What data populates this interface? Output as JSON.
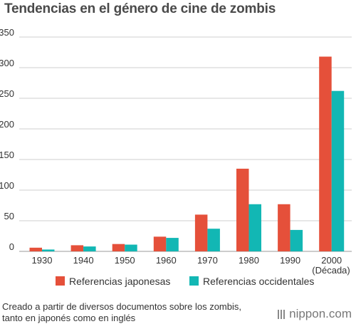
{
  "chart_data": {
    "type": "bar",
    "title": "Tendencias en el género de cine de zombis",
    "categories": [
      "1930",
      "1940",
      "1950",
      "1960",
      "1970",
      "1980",
      "1990",
      "2000"
    ],
    "x_unit_label": "(Década)",
    "series": [
      {
        "name": "Referencias japonesas",
        "color": "#e5503a",
        "values": [
          6,
          10,
          12,
          24,
          60,
          135,
          77,
          318
        ]
      },
      {
        "name": "Referencias occidentales",
        "color": "#12b7b4",
        "values": [
          3,
          8,
          11,
          22,
          37,
          77,
          35,
          262
        ]
      }
    ],
    "ylim": [
      0,
      350
    ],
    "yticks": [
      "0",
      "50",
      "100",
      "150",
      "200",
      "250",
      "300",
      "350"
    ],
    "grid": true,
    "legend_position": "bottom"
  },
  "footer": {
    "note_line1": "Creado a partir de diversos documentos sobre los zombis,",
    "note_line2": "tanto en japonés como en inglés",
    "brand": "nippon.com"
  }
}
